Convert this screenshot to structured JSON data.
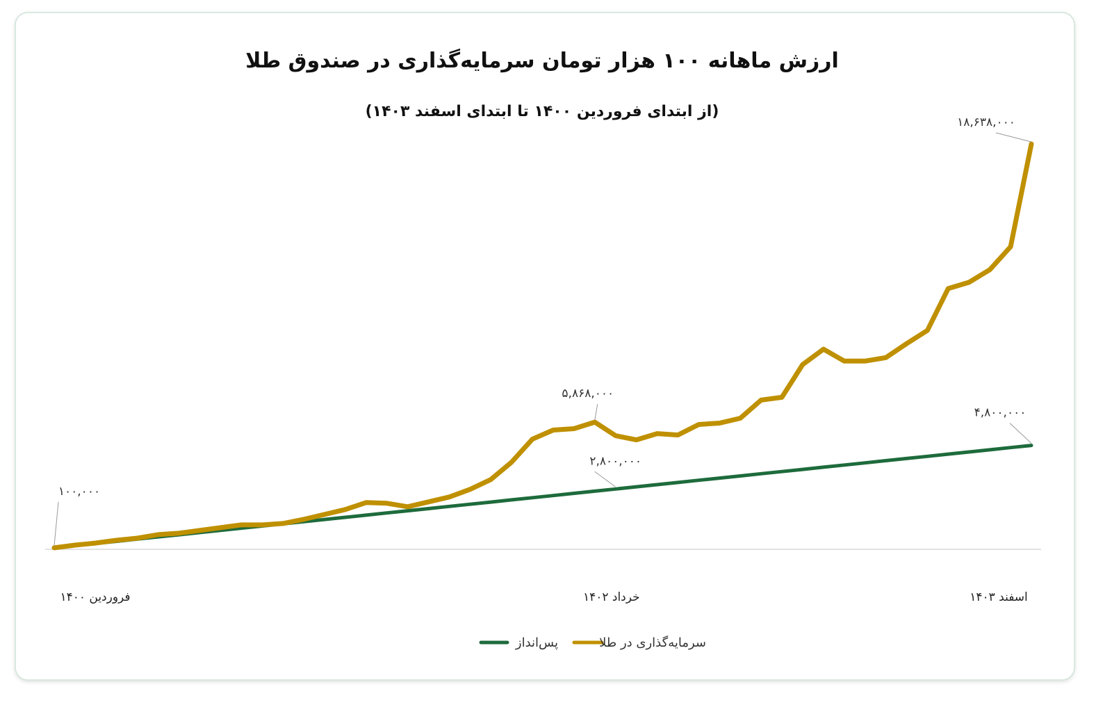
{
  "chart_data": {
    "type": "line",
    "title": "ارزش ماهانه ۱۰۰ هزار تومان سرمایه‌گذاری در صندوق طلا",
    "subtitle": "(از ابتدای فروردین ۱۴۰۰ تا ابتدای اسفند ۱۴۰۳)",
    "categories": [
      "فروردین ۱۴۰۰",
      null,
      null,
      null,
      null,
      null,
      null,
      null,
      null,
      null,
      null,
      null,
      null,
      null,
      null,
      null,
      null,
      null,
      null,
      null,
      null,
      null,
      null,
      null,
      null,
      null,
      "خرداد ۱۴۰۲",
      null,
      null,
      null,
      null,
      null,
      null,
      null,
      null,
      null,
      null,
      null,
      null,
      null,
      null,
      null,
      null,
      null,
      null,
      null,
      null,
      "اسفند ۱۴۰۳"
    ],
    "series": [
      {
        "name": "سرمایه‌گذاری در طلا",
        "color": "#bf9000",
        "values": [
          100000,
          224000,
          320000,
          448000,
          544000,
          704000,
          768000,
          896000,
          1024000,
          1152000,
          1152000,
          1216000,
          1408000,
          1632000,
          1856000,
          2176000,
          2144000,
          1984000,
          2208000,
          2432000,
          2784000,
          3232000,
          4032000,
          5088000,
          5504000,
          5568000,
          5868000,
          5248000,
          5056000,
          5344000,
          5280000,
          5760000,
          5824000,
          6048000,
          6880000,
          7008000,
          8512000,
          9216000,
          8672000,
          8672000,
          8832000,
          9472000,
          10080000,
          12000000,
          12288000,
          12864000,
          13920000,
          18638000
        ],
        "value_labels": [
          null,
          null,
          null,
          null,
          null,
          null,
          null,
          null,
          null,
          null,
          null,
          null,
          null,
          null,
          null,
          null,
          null,
          null,
          null,
          null,
          null,
          null,
          null,
          null,
          null,
          null,
          "۵,۸۶۸,۰۰۰",
          null,
          null,
          null,
          null,
          null,
          null,
          null,
          null,
          null,
          null,
          null,
          null,
          null,
          null,
          null,
          null,
          null,
          null,
          null,
          null,
          "۱۸,۶۳۸,۰۰۰"
        ]
      },
      {
        "name": "پس‌انداز",
        "color": "#1e6b3c",
        "values": [
          100000,
          200000,
          300000,
          400000,
          500000,
          600000,
          700000,
          800000,
          900000,
          1000000,
          1100000,
          1200000,
          1300000,
          1400000,
          1500000,
          1600000,
          1700000,
          1800000,
          1900000,
          2000000,
          2100000,
          2200000,
          2300000,
          2400000,
          2500000,
          2600000,
          2700000,
          2800000,
          2900000,
          3000000,
          3100000,
          3200000,
          3300000,
          3400000,
          3500000,
          3600000,
          3700000,
          3800000,
          3900000,
          4000000,
          4100000,
          4200000,
          4300000,
          4400000,
          4500000,
          4600000,
          4700000,
          4800000
        ],
        "value_labels": [
          "۱۰۰,۰۰۰",
          null,
          null,
          null,
          null,
          null,
          null,
          null,
          null,
          null,
          null,
          null,
          null,
          null,
          null,
          null,
          null,
          null,
          null,
          null,
          null,
          null,
          null,
          null,
          null,
          null,
          null,
          "۲,۸۰۰,۰۰۰",
          null,
          null,
          null,
          null,
          null,
          null,
          null,
          null,
          null,
          null,
          null,
          null,
          null,
          null,
          null,
          null,
          null,
          null,
          null,
          "۴,۸۰۰,۰۰۰"
        ]
      }
    ]
  }
}
